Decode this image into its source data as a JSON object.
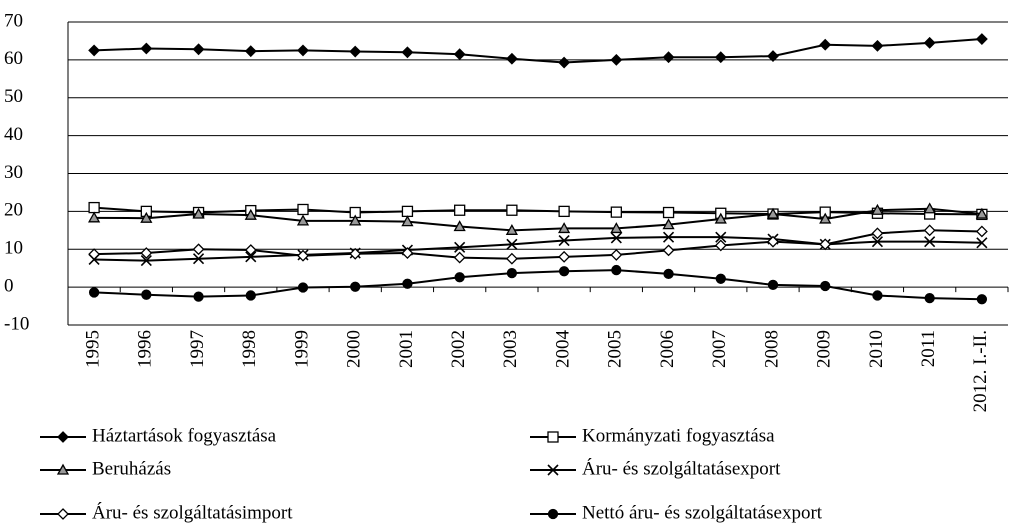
{
  "chart_data": {
    "type": "line",
    "categories": [
      "1995",
      "1996",
      "1997",
      "1998",
      "1999",
      "2000",
      "2001",
      "2002",
      "2003",
      "2004",
      "2005",
      "2006",
      "2007",
      "2008",
      "2009",
      "2010",
      "2011",
      "2012. I.-II."
    ],
    "series": [
      {
        "name": "Háztartások fogyasztása",
        "color": "#000000",
        "marker": "diamond",
        "marker_fill": "#000000",
        "values": [
          62.5,
          63,
          62.8,
          62.3,
          62.5,
          62.2,
          62,
          61.5,
          60.3,
          59.3,
          60,
          60.7,
          60.7,
          61,
          64,
          63.7,
          64.5,
          65.5
        ]
      },
      {
        "name": "Kormányzati fogyasztása",
        "color": "#000000",
        "marker": "square",
        "marker_fill": "#ffffff",
        "values": [
          21,
          20,
          19.7,
          20.2,
          20.5,
          19.7,
          20,
          20.3,
          20.3,
          20,
          19.8,
          19.7,
          19.5,
          19.3,
          19.8,
          19.5,
          19.3,
          19.2
        ]
      },
      {
        "name": "Beruházás",
        "color": "#000000",
        "marker": "triangle",
        "marker_fill": "#999999",
        "values": [
          18.3,
          18.2,
          19.3,
          19,
          17.5,
          17.5,
          17.3,
          16,
          15,
          15.5,
          15.5,
          16.5,
          18,
          19.3,
          18,
          20.3,
          20.7,
          19.3
        ]
      },
      {
        "name": "Áru- és szolgáltatásexport",
        "color": "#000000",
        "marker": "x",
        "marker_fill": "#000000",
        "values": [
          7.3,
          7,
          7.5,
          8,
          8.5,
          9,
          9.8,
          10.5,
          11.3,
          12.3,
          13,
          13.2,
          13.2,
          12.7,
          11.3,
          12,
          12,
          11.7
        ]
      },
      {
        "name": "Áru- és szolgáltatásimport",
        "color": "#000000",
        "marker": "diamond",
        "marker_fill": "#ffffff",
        "values": [
          8.7,
          9,
          10,
          9.8,
          8.3,
          8.8,
          9,
          7.8,
          7.5,
          8,
          8.5,
          9.7,
          11,
          12,
          11.3,
          14.2,
          15,
          14.7
        ]
      },
      {
        "name": "Nettó áru- és szolgáltatásexport",
        "color": "#000000",
        "marker": "circle",
        "marker_fill": "#000000",
        "values": [
          -1.4,
          -2,
          -2.5,
          -2.2,
          -0.1,
          0.1,
          0.9,
          2.6,
          3.7,
          4.2,
          4.5,
          3.5,
          2.2,
          0.6,
          0.3,
          -2.2,
          -2.9,
          -3.2
        ]
      }
    ],
    "ylim": [
      -10,
      70
    ],
    "yticks": [
      {
        "value": -10,
        "label": "-10"
      },
      0,
      10,
      20,
      30,
      40,
      50,
      60,
      70
    ],
    "grid": true,
    "legend": "bottom"
  }
}
